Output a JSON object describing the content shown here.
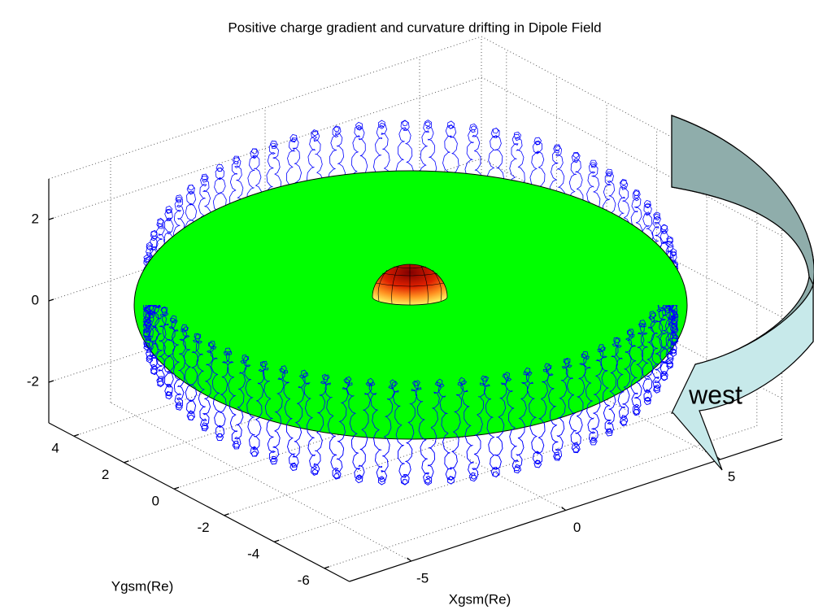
{
  "chart_data": {
    "type": "plot3d",
    "title": "Positive charge gradient and curvature drifting in Dipole Field",
    "xlabel": "Xgsm(Re)",
    "ylabel": "Ygsm(Re)",
    "xlim": [
      -7,
      7
    ],
    "ylim": [
      -7,
      5
    ],
    "zlim": [
      -3,
      3
    ],
    "xticks": [
      -5,
      0,
      5
    ],
    "yticks": [
      -6,
      -4,
      -2,
      0,
      2,
      4
    ],
    "zticks": [
      -2,
      0,
      2
    ],
    "grid": true,
    "annotation": "west"
  }
}
